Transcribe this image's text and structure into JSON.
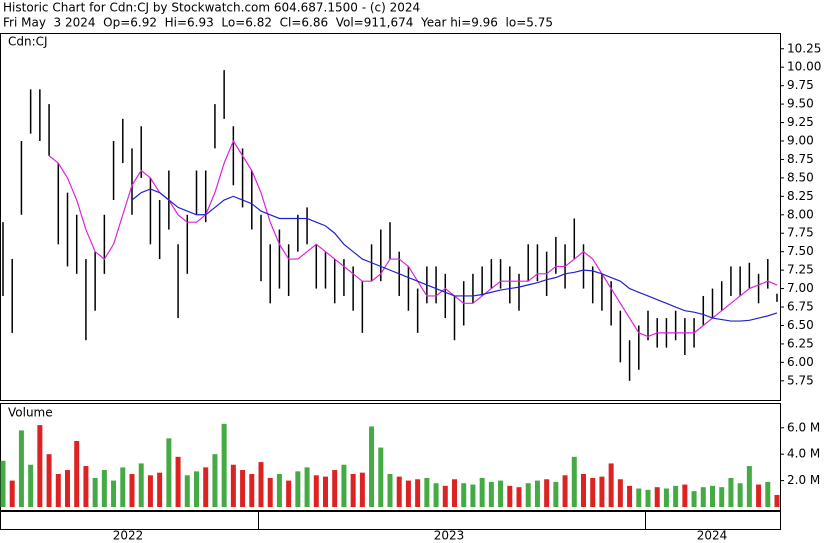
{
  "chart_data": {
    "type": "stock",
    "title": "Historic Chart for Cdn:CJ by Stockwatch.com 604.687.1500 - (c) 2024",
    "subtitle": "Fri May  3 2024  Op=6.92  Hi=6.93  Lo=6.82  Cl=6.86  Vol=911,674  Year hi=9.96  lo=5.75",
    "panel_label": "Cdn:CJ",
    "volume_label": "Volume",
    "year_labels": [
      "2022",
      "2023",
      "2024"
    ],
    "bar_color": "#000000",
    "high": [
      7.9,
      7.4,
      9.0,
      9.7,
      9.7,
      9.5,
      8.7,
      8.3,
      8.0,
      7.4,
      7.5,
      8.0,
      9.0,
      9.3,
      8.9,
      9.2,
      8.5,
      8.2,
      8.6,
      7.6,
      8.0,
      8.6,
      8.6,
      9.5,
      9.96,
      9.2,
      8.9,
      8.6,
      8.0,
      7.6,
      7.8,
      7.6,
      8.0,
      8.1,
      7.6,
      7.5,
      7.4,
      7.4,
      7.3,
      7.1,
      7.6,
      7.8,
      7.9,
      7.5,
      7.3,
      7.0,
      7.3,
      7.3,
      7.2,
      6.9,
      7.1,
      7.2,
      7.3,
      7.4,
      7.4,
      7.3,
      7.2,
      7.6,
      7.6,
      7.5,
      7.7,
      7.6,
      7.95,
      7.6,
      7.3,
      7.2,
      7.1,
      6.7,
      6.3,
      6.5,
      6.7,
      6.6,
      6.6,
      6.7,
      6.6,
      6.6,
      6.9,
      7.0,
      7.1,
      7.3,
      7.3,
      7.35,
      7.2,
      7.4,
      6.93
    ],
    "low": [
      6.9,
      6.4,
      8.0,
      9.1,
      9.0,
      8.8,
      7.6,
      7.3,
      7.2,
      6.3,
      6.7,
      7.2,
      8.2,
      8.7,
      8.0,
      8.5,
      7.6,
      7.4,
      7.8,
      6.6,
      7.2,
      8.0,
      7.9,
      8.9,
      9.3,
      8.4,
      8.1,
      7.8,
      7.1,
      6.8,
      7.0,
      6.9,
      7.5,
      7.6,
      7.0,
      7.0,
      6.8,
      6.9,
      6.7,
      6.4,
      7.1,
      7.1,
      7.4,
      6.9,
      6.7,
      6.4,
      6.8,
      6.8,
      6.6,
      6.3,
      6.5,
      6.8,
      6.9,
      7.0,
      7.0,
      6.8,
      6.7,
      7.1,
      7.1,
      6.9,
      7.2,
      7.0,
      7.4,
      7.0,
      6.8,
      6.7,
      6.5,
      6.0,
      5.75,
      5.9,
      6.3,
      6.2,
      6.2,
      6.3,
      6.1,
      6.2,
      6.5,
      6.6,
      6.7,
      6.9,
      6.9,
      7.0,
      6.8,
      7.0,
      6.82
    ],
    "series": [
      {
        "color": "#dd22dd",
        "values": [
          null,
          null,
          null,
          null,
          null,
          8.8,
          8.7,
          8.5,
          8.2,
          7.8,
          7.5,
          7.4,
          7.6,
          8.0,
          8.4,
          8.6,
          8.5,
          8.3,
          8.2,
          8.0,
          7.9,
          7.9,
          8.0,
          8.3,
          8.7,
          9.0,
          8.8,
          8.6,
          8.3,
          7.9,
          7.6,
          7.4,
          7.4,
          7.5,
          7.6,
          7.5,
          7.4,
          7.3,
          7.2,
          7.1,
          7.1,
          7.2,
          7.4,
          7.4,
          7.3,
          7.1,
          6.9,
          6.9,
          7.0,
          6.9,
          6.8,
          6.8,
          6.9,
          7.0,
          7.1,
          7.1,
          7.1,
          7.1,
          7.2,
          7.2,
          7.3,
          7.3,
          7.4,
          7.5,
          7.4,
          7.2,
          7.0,
          6.8,
          6.6,
          6.4,
          6.35,
          6.4,
          6.4,
          6.4,
          6.4,
          6.4,
          6.5,
          6.6,
          6.7,
          6.8,
          6.9,
          7.0,
          7.05,
          7.1,
          7.05
        ]
      },
      {
        "color": "#2222cc",
        "values": [
          null,
          null,
          null,
          null,
          null,
          null,
          null,
          null,
          null,
          null,
          null,
          null,
          null,
          null,
          8.2,
          8.3,
          8.35,
          8.3,
          8.2,
          8.1,
          8.05,
          8.0,
          8.0,
          8.1,
          8.2,
          8.25,
          8.2,
          8.15,
          8.05,
          8.0,
          7.95,
          7.95,
          7.95,
          7.95,
          7.9,
          7.85,
          7.75,
          7.6,
          7.5,
          7.4,
          7.35,
          7.3,
          7.25,
          7.2,
          7.15,
          7.1,
          7.05,
          7.0,
          6.95,
          6.9,
          6.9,
          6.9,
          6.92,
          6.95,
          6.98,
          7.0,
          7.02,
          7.05,
          7.08,
          7.12,
          7.15,
          7.2,
          7.22,
          7.25,
          7.24,
          7.2,
          7.15,
          7.1,
          7.0,
          6.95,
          6.9,
          6.85,
          6.8,
          6.75,
          6.7,
          6.68,
          6.65,
          6.6,
          6.58,
          6.56,
          6.56,
          6.57,
          6.6,
          6.63,
          6.67
        ]
      }
    ],
    "volume": {
      "up_color": "#44aa44",
      "down_color": "#dd2222",
      "values": [
        3500000,
        2000000,
        5800000,
        3200000,
        6200000,
        4000000,
        2500000,
        2800000,
        5000000,
        3100000,
        2200000,
        2800000,
        2000000,
        3000000,
        2500000,
        3300000,
        2400000,
        2600000,
        5200000,
        3800000,
        2400000,
        2700000,
        3000000,
        4000000,
        6300000,
        3200000,
        2800000,
        2500000,
        3400000,
        2200000,
        2500000,
        2000000,
        2700000,
        3000000,
        2400000,
        2300000,
        2800000,
        3200000,
        2500000,
        2600000,
        6100000,
        4500000,
        2500000,
        2300000,
        2000000,
        2100000,
        2200000,
        1800000,
        1600000,
        2100000,
        1800000,
        1700000,
        2200000,
        1900000,
        2000000,
        1600000,
        1500000,
        1800000,
        2000000,
        2100000,
        1900000,
        2400000,
        3800000,
        2500000,
        2200000,
        2300000,
        3300000,
        2100000,
        1600000,
        1400000,
        1300000,
        1500000,
        1400000,
        1600000,
        1700000,
        1200000,
        1500000,
        1600000,
        1500000,
        2200000,
        1800000,
        3100000,
        1700000,
        1900000,
        911674
      ],
      "ylim": [
        0,
        7800000
      ],
      "yticks": [
        {
          "value": 2000000,
          "label": "2.0 M"
        },
        {
          "value": 4000000,
          "label": "4.0 M"
        },
        {
          "value": 6000000,
          "label": "6.0 M"
        }
      ]
    },
    "ylim": [
      5.49,
      10.45
    ],
    "yticks": [
      5.75,
      {
        "value": 6,
        "label": "6.00"
      },
      6.25,
      {
        "value": 6.5,
        "label": "6.50"
      },
      6.75,
      {
        "value": 7,
        "label": "7.00"
      },
      7.25,
      {
        "value": 7.5,
        "label": "7.50"
      },
      7.75,
      {
        "value": 8,
        "label": "8.00"
      },
      8.25,
      {
        "value": 8.5,
        "label": "8.50"
      },
      8.75,
      {
        "value": 9,
        "label": "9.00"
      },
      9.25,
      {
        "value": 9.5,
        "label": "9.50"
      },
      9.75,
      {
        "value": 10,
        "label": "10.00"
      },
      10.25
    ]
  }
}
